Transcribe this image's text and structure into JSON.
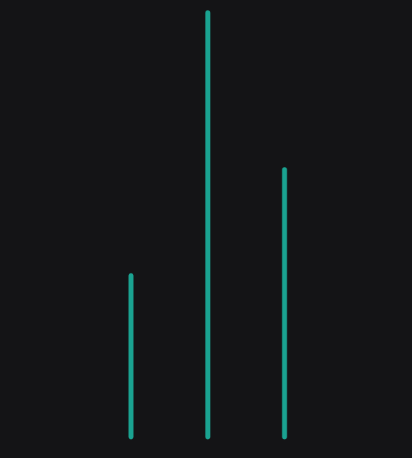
{
  "chart_data": {
    "type": "bar",
    "categories": [
      "",
      "",
      ""
    ],
    "values": [
      38,
      100,
      63
    ],
    "title": "",
    "xlabel": "",
    "ylabel": "",
    "ylim": [
      0,
      100
    ],
    "grid": false,
    "legend": "none"
  },
  "colors": {
    "background": "#141416",
    "bar": "#1aa391"
  }
}
